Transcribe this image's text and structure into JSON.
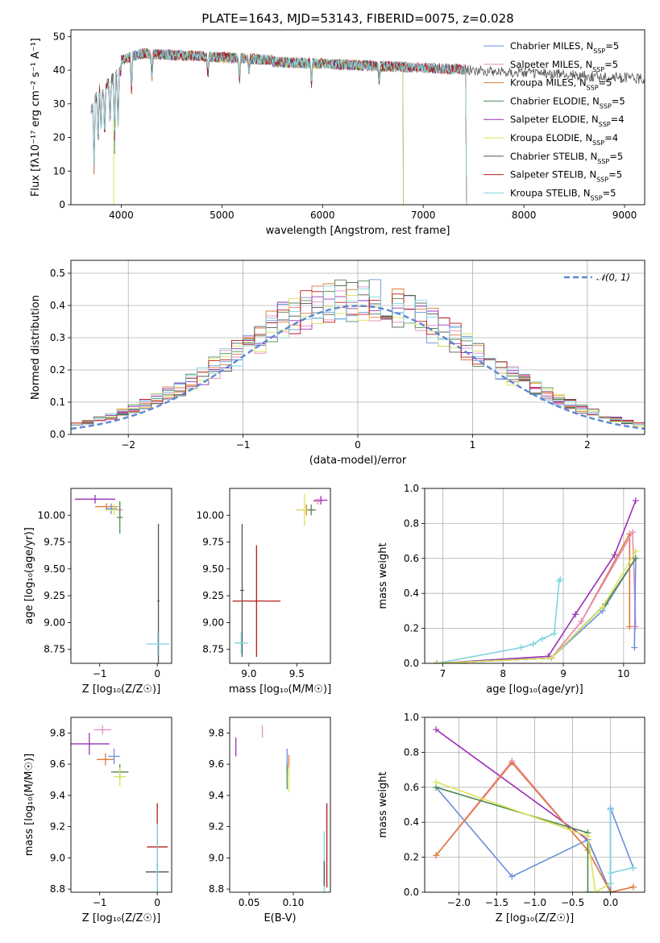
{
  "chart_data": [
    {
      "type": "line",
      "title": "PLATE=1643, MJD=53143, FIBERID=0075, z=0.028",
      "xlabel": "wavelength [Angstrom, rest frame]",
      "ylabel": "Flux [fλ10⁻¹⁷ erg cm⁻² s⁻¹ A⁻¹]",
      "xlim": [
        3500,
        9200
      ],
      "ylim": [
        0,
        52
      ],
      "xticks": [
        4000,
        5000,
        6000,
        7000,
        8000,
        9000
      ],
      "yticks": [
        0,
        10,
        20,
        30,
        40,
        50
      ],
      "legend": "top-right",
      "series": [
        {
          "name": "Chabrier MILES, N_SSP=5",
          "legend_main": "Chabrier MILES, N",
          "legend_sub": "SSP",
          "legend_tail": "=5",
          "color": "#6a8fdb",
          "range": [
            3700,
            7420
          ]
        },
        {
          "name": "Salpeter MILES, N_SSP=5",
          "legend_main": "Salpeter MILES, N",
          "legend_sub": "SSP",
          "legend_tail": "=5",
          "color": "#e88bbd",
          "range": [
            3700,
            7420
          ]
        },
        {
          "name": "Kroupa MILES, N_SSP=5",
          "legend_main": "Kroupa MILES, N",
          "legend_sub": "SSP",
          "legend_tail": "=5",
          "color": "#e0793a",
          "range": [
            3700,
            7420
          ]
        },
        {
          "name": "Chabrier ELODIE, N_SSP=5",
          "legend_main": "Chabrier ELODIE, N",
          "legend_sub": "SSP",
          "legend_tail": "=5",
          "color": "#4e8a4e",
          "range": [
            3900,
            6800
          ]
        },
        {
          "name": "Salpeter ELODIE, N_SSP=4",
          "legend_main": "Salpeter ELODIE, N",
          "legend_sub": "SSP",
          "legend_tail": "=4",
          "color": "#9b30b8",
          "range": [
            3900,
            6800
          ]
        },
        {
          "name": "Kroupa ELODIE, N_SSP=4",
          "legend_main": "Kroupa ELODIE, N",
          "legend_sub": "SSP",
          "legend_tail": "=4",
          "color": "#dbe35a",
          "range": [
            3900,
            6800
          ]
        },
        {
          "name": "Chabrier STELIB, N_SSP=5",
          "legend_main": "Chabrier STELIB, N",
          "legend_sub": "SSP",
          "legend_tail": "=5",
          "color": "#555555",
          "range": [
            3700,
            9200
          ]
        },
        {
          "name": "Salpeter STELIB, N_SSP=5",
          "legend_main": "Salpeter STELIB, N",
          "legend_sub": "SSP",
          "legend_tail": "=5",
          "color": "#b71c1c",
          "range": [
            3700,
            7420
          ]
        },
        {
          "name": "Kroupa STELIB, N_SSP=5",
          "legend_main": "Kroupa STELIB, N",
          "legend_sub": "SSP",
          "legend_tail": "=5",
          "color": "#7fd4df",
          "range": [
            3700,
            7420
          ]
        }
      ]
    },
    {
      "type": "histogram",
      "xlabel": "(data-model)/error",
      "ylabel": "Normed distribution",
      "xlim": [
        -2.5,
        2.5
      ],
      "ylim": [
        0,
        0.54
      ],
      "xticks": [
        -2,
        -1,
        0,
        1,
        2
      ],
      "yticks": [
        0.0,
        0.1,
        0.2,
        0.3,
        0.4,
        0.5
      ],
      "grid": true,
      "legend": "top-right",
      "reference": {
        "name": "𝒩(0, 1)",
        "color": "#5b87d6"
      },
      "bin_width": 0.1
    },
    {
      "type": "scatter",
      "xlabel": "Z [log₁₀(Z/Z☉)]",
      "ylabel": "age  [log₁₀(age/yr)]",
      "xlim": [
        -1.5,
        0.25
      ],
      "ylim": [
        8.62,
        10.25
      ],
      "xticks": [
        -1,
        0
      ],
      "yticks": [
        8.75,
        9.0,
        9.25,
        9.5,
        9.75,
        10.0
      ],
      "points": [
        {
          "x": -1.08,
          "y": 10.15,
          "xerr": 0.35,
          "yerr": 0.04,
          "color": "#9b30b8"
        },
        {
          "x": -0.88,
          "y": 10.08,
          "xerr": 0.2,
          "yerr": 0.03,
          "color": "#e0793a"
        },
        {
          "x": -0.8,
          "y": 10.06,
          "xerr": 0.1,
          "yerr": 0.05,
          "color": "#6a8fdb"
        },
        {
          "x": -0.75,
          "y": 10.05,
          "xerr": 0.15,
          "yerr": 0.05,
          "color": "#dbe35a"
        },
        {
          "x": -0.65,
          "y": 10.05,
          "xerr": 0.05,
          "yerr": 0.05,
          "color": "#e88bbd"
        },
        {
          "x": -0.65,
          "y": 9.98,
          "xerr": 0.05,
          "yerr": 0.15,
          "color": "#4e8a4e"
        },
        {
          "x": 0.02,
          "y": 9.2,
          "xerr": 0.02,
          "yerr": 0.72,
          "color": "#555555"
        },
        {
          "x": 0.01,
          "y": 8.8,
          "xerr": 0.2,
          "yerr": 0.1,
          "color": "#7fd4df"
        }
      ]
    },
    {
      "type": "scatter",
      "xlabel": "mass [log₁₀(M/M☉)]",
      "ylabel": "",
      "xlim": [
        8.8,
        9.85
      ],
      "ylim": [
        8.62,
        10.25
      ],
      "xticks": [
        9.0,
        9.5
      ],
      "yticks": [
        8.75,
        9.0,
        9.25,
        9.5,
        9.75,
        10.0
      ],
      "points": [
        {
          "x": 9.75,
          "y": 10.14,
          "xerr": 0.07,
          "yerr": 0.04,
          "color": "#9b30b8"
        },
        {
          "x": 9.72,
          "y": 10.13,
          "xerr": 0.05,
          "yerr": 0.03,
          "color": "#e88bbd"
        },
        {
          "x": 9.6,
          "y": 10.05,
          "xerr": 0.1,
          "yerr": 0.05,
          "color": "#e0793a"
        },
        {
          "x": 9.58,
          "y": 10.05,
          "xerr": 0.07,
          "yerr": 0.15,
          "color": "#dbe35a"
        },
        {
          "x": 9.65,
          "y": 10.05,
          "xerr": 0.04,
          "yerr": 0.05,
          "color": "#4e8a4e"
        },
        {
          "x": 9.08,
          "y": 9.2,
          "xerr": 0.25,
          "yerr": 0.52,
          "color": "#b71c1c"
        },
        {
          "x": 8.93,
          "y": 9.3,
          "xerr": 0.02,
          "yerr": 0.62,
          "color": "#555555"
        },
        {
          "x": 8.92,
          "y": 8.81,
          "xerr": 0.07,
          "yerr": 0.1,
          "color": "#7fd4df"
        }
      ]
    },
    {
      "type": "line",
      "xlabel": "age  [log₁₀(age/yr)]",
      "ylabel": "mass weight",
      "xlim": [
        6.7,
        10.35
      ],
      "ylim": [
        0,
        1
      ],
      "xticks": [
        7,
        8,
        9,
        10
      ],
      "yticks": [
        0.0,
        0.2,
        0.4,
        0.6,
        0.8,
        1.0
      ],
      "grid": true,
      "series": [
        {
          "color": "#7fd4df",
          "x": [
            6.9,
            8.3,
            8.5,
            8.65,
            8.85,
            8.93,
            8.95
          ],
          "y": [
            0.0,
            0.09,
            0.11,
            0.14,
            0.17,
            0.47,
            0.48
          ]
        },
        {
          "color": "#9b30b8",
          "x": [
            6.9,
            8.75,
            9.2,
            9.85,
            10.2
          ],
          "y": [
            0.0,
            0.04,
            0.28,
            0.62,
            0.93
          ]
        },
        {
          "color": "#e0793a",
          "x": [
            6.9,
            8.8,
            9.3,
            10.1,
            10.1
          ],
          "y": [
            0.0,
            0.03,
            0.24,
            0.74,
            0.21
          ]
        },
        {
          "color": "#e88bbd",
          "x": [
            6.9,
            8.8,
            9.3,
            10.15,
            10.2
          ],
          "y": [
            0.0,
            0.03,
            0.24,
            0.75,
            0.21
          ]
        },
        {
          "color": "#6a8fdb",
          "x": [
            6.9,
            8.8,
            9.65,
            10.2,
            10.18
          ],
          "y": [
            0.0,
            0.03,
            0.3,
            0.6,
            0.09
          ]
        },
        {
          "color": "#4e8a4e",
          "x": [
            6.9,
            8.8,
            9.7,
            10.2
          ],
          "y": [
            0.0,
            0.03,
            0.34,
            0.6
          ]
        },
        {
          "color": "#dbe35a",
          "x": [
            6.9,
            8.8,
            9.65,
            10.2
          ],
          "y": [
            0.0,
            0.03,
            0.32,
            0.64
          ]
        }
      ]
    },
    {
      "type": "scatter",
      "xlabel": "Z [log₁₀(Z/Z☉)]",
      "ylabel": "mass [log₁₀(M/M☉)]",
      "xlim": [
        -1.5,
        0.25
      ],
      "ylim": [
        8.78,
        9.9
      ],
      "xticks": [
        -1,
        0
      ],
      "yticks": [
        8.8,
        9.0,
        9.2,
        9.4,
        9.6,
        9.8
      ],
      "points": [
        {
          "x": -1.18,
          "y": 9.73,
          "xerr": 0.35,
          "yerr": 0.07,
          "color": "#9b30b8"
        },
        {
          "x": -0.95,
          "y": 9.82,
          "xerr": 0.15,
          "yerr": 0.03,
          "color": "#e88bbd"
        },
        {
          "x": -0.9,
          "y": 9.63,
          "xerr": 0.15,
          "yerr": 0.04,
          "color": "#e0793a"
        },
        {
          "x": -0.75,
          "y": 9.65,
          "xerr": 0.1,
          "yerr": 0.05,
          "color": "#6a8fdb"
        },
        {
          "x": -0.65,
          "y": 9.55,
          "xerr": 0.15,
          "yerr": 0.05,
          "color": "#4e8a4e"
        },
        {
          "x": -0.65,
          "y": 9.52,
          "xerr": 0.1,
          "yerr": 0.06,
          "color": "#dbe35a"
        },
        {
          "x": 0.0,
          "y": 9.07,
          "xerr": 0.18,
          "yerr": 0.28,
          "color": "#b71c1c"
        },
        {
          "x": 0.0,
          "y": 8.91,
          "xerr": 0.2,
          "yerr": 0.05,
          "color": "#555555"
        },
        {
          "x": 0.0,
          "y": 8.95,
          "xerr": 0.02,
          "yerr": 0.27,
          "color": "#7fd4df"
        }
      ]
    },
    {
      "type": "scatter",
      "xlabel": "E(B-V)",
      "ylabel": "",
      "xlim": [
        0.028,
        0.142
      ],
      "ylim": [
        8.78,
        9.9
      ],
      "xticks": [
        0.05,
        0.1
      ],
      "yticks": [
        8.8,
        9.0,
        9.2,
        9.4,
        9.6,
        9.8
      ],
      "points": [
        {
          "x": 0.035,
          "y": 9.71,
          "xerr": 0.0,
          "yerr": 0.06,
          "color": "#9b30b8"
        },
        {
          "x": 0.065,
          "y": 9.81,
          "xerr": 0.0,
          "yerr": 0.04,
          "color": "#e88bbd"
        },
        {
          "x": 0.093,
          "y": 9.62,
          "xerr": 0.0,
          "yerr": 0.08,
          "color": "#6a8fdb"
        },
        {
          "x": 0.095,
          "y": 9.6,
          "xerr": 0.0,
          "yerr": 0.06,
          "color": "#e0793a"
        },
        {
          "x": 0.095,
          "y": 9.5,
          "xerr": 0.0,
          "yerr": 0.08,
          "color": "#dbe35a"
        },
        {
          "x": 0.093,
          "y": 9.52,
          "xerr": 0.0,
          "yerr": 0.08,
          "color": "#4e8a4e"
        },
        {
          "x": 0.138,
          "y": 9.08,
          "xerr": 0.0,
          "yerr": 0.27,
          "color": "#b71c1c"
        },
        {
          "x": 0.135,
          "y": 8.95,
          "xerr": 0.0,
          "yerr": 0.22,
          "color": "#7fd4df"
        },
        {
          "x": 0.135,
          "y": 8.9,
          "xerr": 0.0,
          "yerr": 0.08,
          "color": "#555555"
        }
      ]
    },
    {
      "type": "line",
      "xlabel": "Z [log₁₀(Z/Z☉)]",
      "ylabel": "mass weight",
      "xlim": [
        -2.45,
        0.45
      ],
      "ylim": [
        0,
        1
      ],
      "xticks": [
        -2.0,
        -1.5,
        -1.0,
        -0.5,
        0.0
      ],
      "yticks": [
        0.0,
        0.2,
        0.4,
        0.6,
        0.8,
        1.0
      ],
      "grid": true,
      "series": [
        {
          "color": "#9b30b8",
          "x": [
            -2.3,
            -0.3,
            0.0,
            0.0
          ],
          "y": [
            0.93,
            0.3,
            0.0,
            0.0
          ]
        },
        {
          "color": "#6a8fdb",
          "x": [
            -2.3,
            -1.3,
            -0.3,
            0.0,
            0.0,
            0.3
          ],
          "y": [
            0.6,
            0.09,
            0.3,
            0.0,
            0.48,
            0.14
          ]
        },
        {
          "color": "#e88bbd",
          "x": [
            -2.3,
            -1.3,
            -0.3,
            0.0,
            0.3
          ],
          "y": [
            0.21,
            0.75,
            0.24,
            0.0,
            0.03
          ]
        },
        {
          "color": "#e0793a",
          "x": [
            -2.3,
            -1.3,
            -0.3,
            0.0,
            0.3
          ],
          "y": [
            0.21,
            0.74,
            0.24,
            0.0,
            0.03
          ]
        },
        {
          "color": "#4e8a4e",
          "x": [
            -2.3,
            -0.3,
            -0.3,
            0.0
          ],
          "y": [
            0.6,
            0.34,
            0.0,
            0.0
          ]
        },
        {
          "color": "#dbe35a",
          "x": [
            -2.3,
            -0.3,
            -0.2,
            0.0
          ],
          "y": [
            0.63,
            0.32,
            0.0,
            0.05
          ]
        },
        {
          "color": "#7fd4df",
          "x": [
            0.0,
            0.0,
            0.0,
            0.3
          ],
          "y": [
            0.05,
            0.47,
            0.11,
            0.14
          ]
        }
      ]
    }
  ]
}
